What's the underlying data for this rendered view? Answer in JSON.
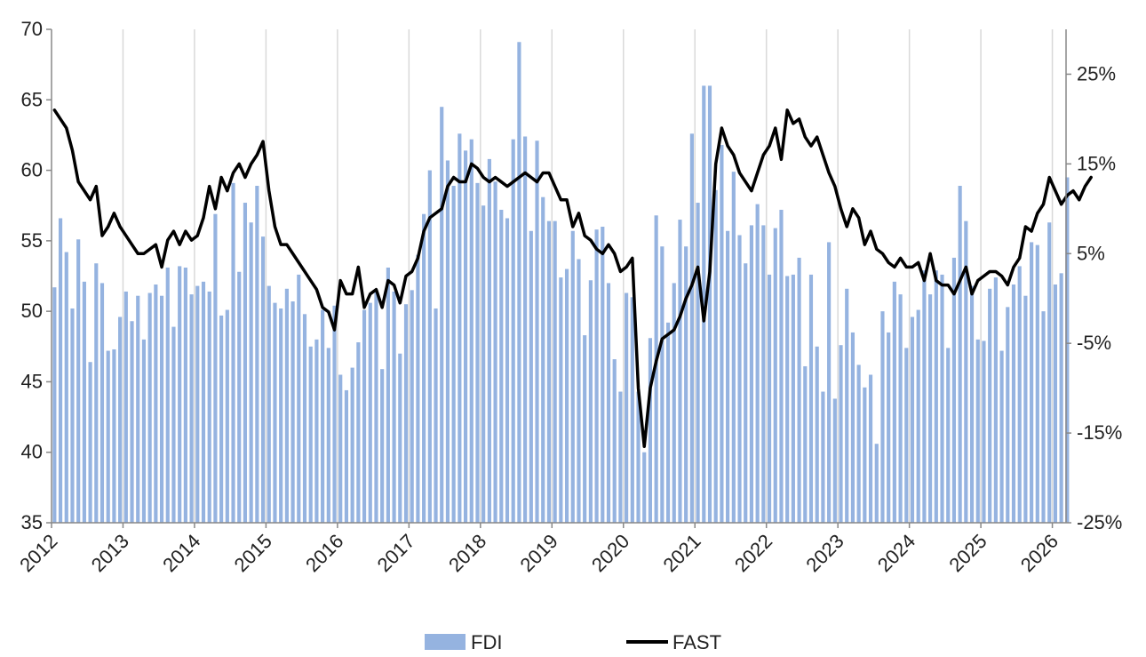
{
  "chart_data": {
    "type": "bar+line",
    "x_start": "2012-01",
    "x_end": "2026-03",
    "frequency": "monthly",
    "x_tick_labels": [
      "2012",
      "2013",
      "2014",
      "2015",
      "2016",
      "2017",
      "2018",
      "2019",
      "2020",
      "2021",
      "2022",
      "2023",
      "2024",
      "2025",
      "2026"
    ],
    "y_left": {
      "min": 35,
      "max": 70,
      "ticks": [
        "35",
        "40",
        "45",
        "50",
        "55",
        "60",
        "65",
        "70"
      ]
    },
    "y_right": {
      "min": -25,
      "max": 30,
      "ticks": [
        "-25%",
        "-15%",
        "-5%",
        "5%",
        "15%",
        "25%"
      ]
    },
    "grid": {
      "vertical": true,
      "horizontal": false
    },
    "legend_position": "bottom",
    "series": [
      {
        "name": "FDI",
        "type": "bar",
        "axis": "left",
        "color": "#95b3e0",
        "values": [
          51.7,
          56.6,
          54.2,
          50.2,
          55.1,
          52.1,
          46.4,
          53.4,
          52.0,
          47.2,
          47.3,
          49.6,
          51.4,
          49.3,
          51.1,
          48.0,
          51.3,
          51.9,
          51.1,
          53.1,
          48.9,
          53.2,
          53.1,
          51.2,
          51.8,
          52.1,
          51.4,
          56.9,
          49.7,
          50.1,
          59.1,
          52.8,
          57.7,
          56.3,
          58.9,
          55.3,
          51.8,
          50.6,
          50.2,
          51.6,
          50.7,
          52.6,
          49.8,
          47.5,
          48.0,
          50.1,
          47.4,
          50.4,
          45.5,
          44.4,
          46.0,
          47.8,
          50.1,
          50.6,
          51.4,
          45.9,
          53.1,
          51.4,
          47.0,
          50.5,
          51.5,
          54.0,
          56.9,
          60.0,
          50.2,
          64.5,
          60.7,
          58.9,
          62.6,
          61.4,
          62.2,
          59.1,
          57.5,
          60.8,
          59.2,
          57.2,
          56.6,
          62.2,
          69.1,
          62.4,
          55.7,
          62.1,
          58.1,
          56.4,
          56.4,
          52.4,
          53.0,
          55.7,
          53.7,
          48.3,
          52.2,
          55.8,
          56.0,
          52.0,
          46.6,
          44.3,
          51.3,
          51.0,
          44.3,
          40.0,
          48.1,
          56.8,
          54.6,
          49.2,
          52.0,
          56.5,
          54.6,
          62.6,
          57.7,
          66.0,
          66.0,
          58.6,
          61.8,
          55.7,
          59.9,
          55.4,
          53.4,
          56.1,
          57.6,
          56.1,
          52.6,
          55.9,
          57.2,
          52.5,
          52.6,
          53.8,
          46.1,
          52.6,
          47.5,
          44.3,
          54.9,
          43.8,
          47.6,
          51.6,
          48.5,
          46.2,
          44.6,
          45.5,
          40.6,
          50.0,
          48.5,
          52.1,
          51.2,
          47.4,
          49.6,
          50.1,
          52.9,
          51.2,
          52.9,
          52.6,
          47.4,
          53.8,
          58.9,
          56.4,
          51.8,
          48.0,
          47.9,
          51.6,
          52.4,
          47.2,
          50.3,
          51.9,
          53.2,
          51.1,
          54.9,
          54.7,
          50.0,
          56.3,
          51.9,
          52.7,
          59.5
        ]
      },
      {
        "name": "FAST",
        "type": "line",
        "axis": "right",
        "color": "#000000",
        "values": [
          21.0,
          20.0,
          19.0,
          16.5,
          13.0,
          12.0,
          11.0,
          12.5,
          7.0,
          8.0,
          9.5,
          8.0,
          7.0,
          6.0,
          5.0,
          5.0,
          5.5,
          6.0,
          3.5,
          6.5,
          7.5,
          6.0,
          7.5,
          6.5,
          7.0,
          9.0,
          12.5,
          10.0,
          13.5,
          12.0,
          14.0,
          15.0,
          13.5,
          15.0,
          16.0,
          17.5,
          12.0,
          8.0,
          6.0,
          6.0,
          5.0,
          4.0,
          3.0,
          2.0,
          1.0,
          -1.0,
          -1.5,
          -3.5,
          2.0,
          0.5,
          0.5,
          3.5,
          -1.0,
          0.5,
          1.0,
          -1.0,
          2.0,
          1.5,
          -0.5,
          2.5,
          3.0,
          4.5,
          7.5,
          9.0,
          9.5,
          10.0,
          12.5,
          13.5,
          13.0,
          13.0,
          15.0,
          14.5,
          13.5,
          13.0,
          13.5,
          13.0,
          12.5,
          13.0,
          13.5,
          14.0,
          13.5,
          13.0,
          14.0,
          14.0,
          12.5,
          11.0,
          11.0,
          8.0,
          9.5,
          7.0,
          6.5,
          5.5,
          5.0,
          6.0,
          5.0,
          3.0,
          3.5,
          4.5,
          -10.0,
          -16.5,
          -10.0,
          -7.0,
          -4.5,
          -4.0,
          -3.5,
          -2.0,
          0.0,
          1.5,
          3.5,
          -2.5,
          3.0,
          15.0,
          19.0,
          17.0,
          16.0,
          14.0,
          13.0,
          12.0,
          14.0,
          16.0,
          17.0,
          19.0,
          15.5,
          21.0,
          19.5,
          20.0,
          18.0,
          17.0,
          18.0,
          16.0,
          14.0,
          12.5,
          10.0,
          8.0,
          10.0,
          9.0,
          6.0,
          7.5,
          5.5,
          5.0,
          4.0,
          3.5,
          4.5,
          3.5,
          3.5,
          4.0,
          2.0,
          5.0,
          2.0,
          1.5,
          1.5,
          0.5,
          2.0,
          3.5,
          0.5,
          2.0,
          2.5,
          3.0,
          3.0,
          2.5,
          1.5,
          3.5,
          4.5,
          8.0,
          7.5,
          9.5,
          10.5,
          13.5,
          12.0,
          10.5,
          11.5,
          12.0,
          11.0,
          12.5,
          13.5
        ]
      }
    ]
  }
}
